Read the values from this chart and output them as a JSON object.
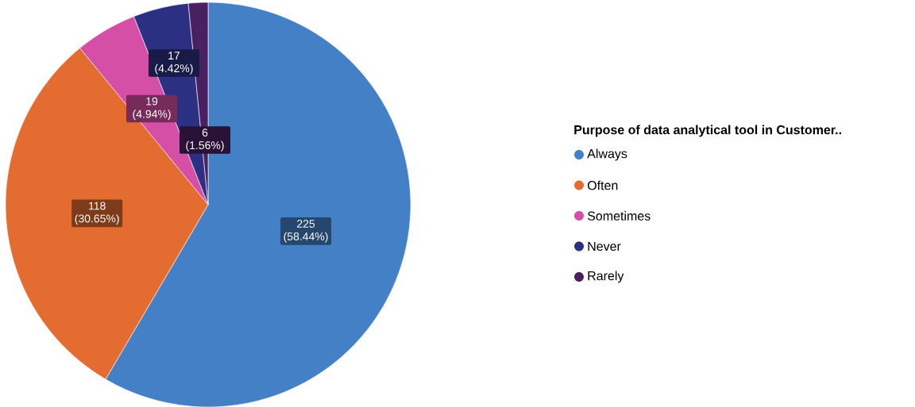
{
  "chart_data": {
    "type": "pie",
    "legend_title": "Purpose of data analytical tool in Customer..",
    "legend": "right",
    "categories": [
      "Always",
      "Often",
      "Sometimes",
      "Never",
      "Rarely"
    ],
    "values": [
      225,
      118,
      19,
      17,
      6
    ],
    "colors": [
      "#4480c6",
      "#e46c30",
      "#d64fa6",
      "#2b3082",
      "#4a2060"
    ],
    "value_labels": [
      "225 (58.44%)",
      "118 (30.65%)",
      "19 (4.94%)",
      "17 (4.42%)",
      "6 (1.56%)"
    ]
  }
}
